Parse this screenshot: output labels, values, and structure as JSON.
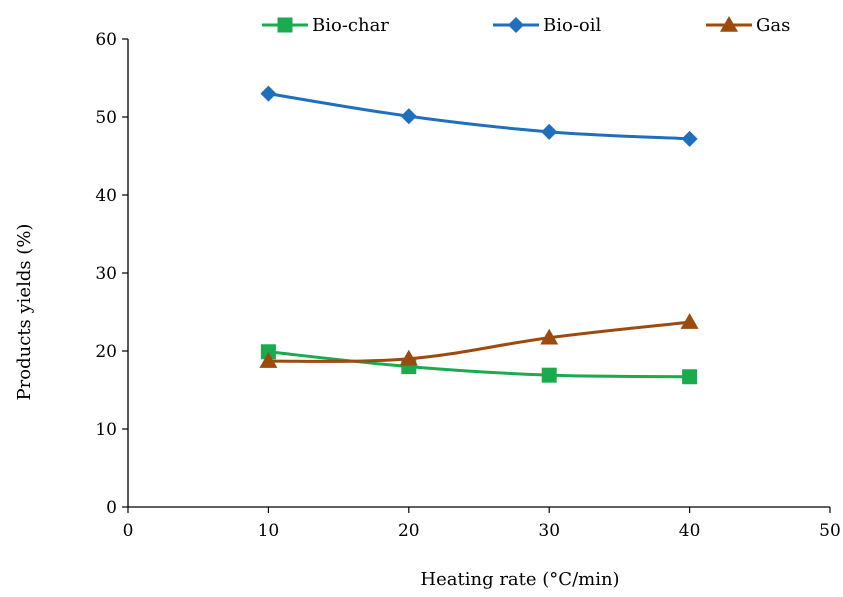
{
  "chart_data": {
    "type": "line",
    "title": "",
    "xlabel": "Heating rate (°C/min)",
    "ylabel": "Products yields (%)",
    "xlim": [
      0,
      50
    ],
    "ylim": [
      0,
      60
    ],
    "x_ticks": [
      "0",
      "10",
      "20",
      "30",
      "40",
      "50"
    ],
    "y_ticks": [
      "0",
      "10",
      "20",
      "30",
      "40",
      "50",
      "60"
    ],
    "grid": false,
    "legend_position": "top",
    "x": [
      10,
      20,
      30,
      40
    ],
    "series": [
      {
        "name": "Bio-char",
        "values": [
          19.9,
          18.0,
          16.9,
          16.7
        ],
        "color": "#1aab4f",
        "marker": "square"
      },
      {
        "name": "Bio-oil",
        "values": [
          53.0,
          50.1,
          48.1,
          47.2
        ],
        "color": "#1f6fbd",
        "marker": "diamond"
      },
      {
        "name": "Gas",
        "values": [
          18.7,
          19.0,
          21.7,
          23.7
        ],
        "color": "#9c4a0e",
        "marker": "triangle"
      }
    ]
  }
}
